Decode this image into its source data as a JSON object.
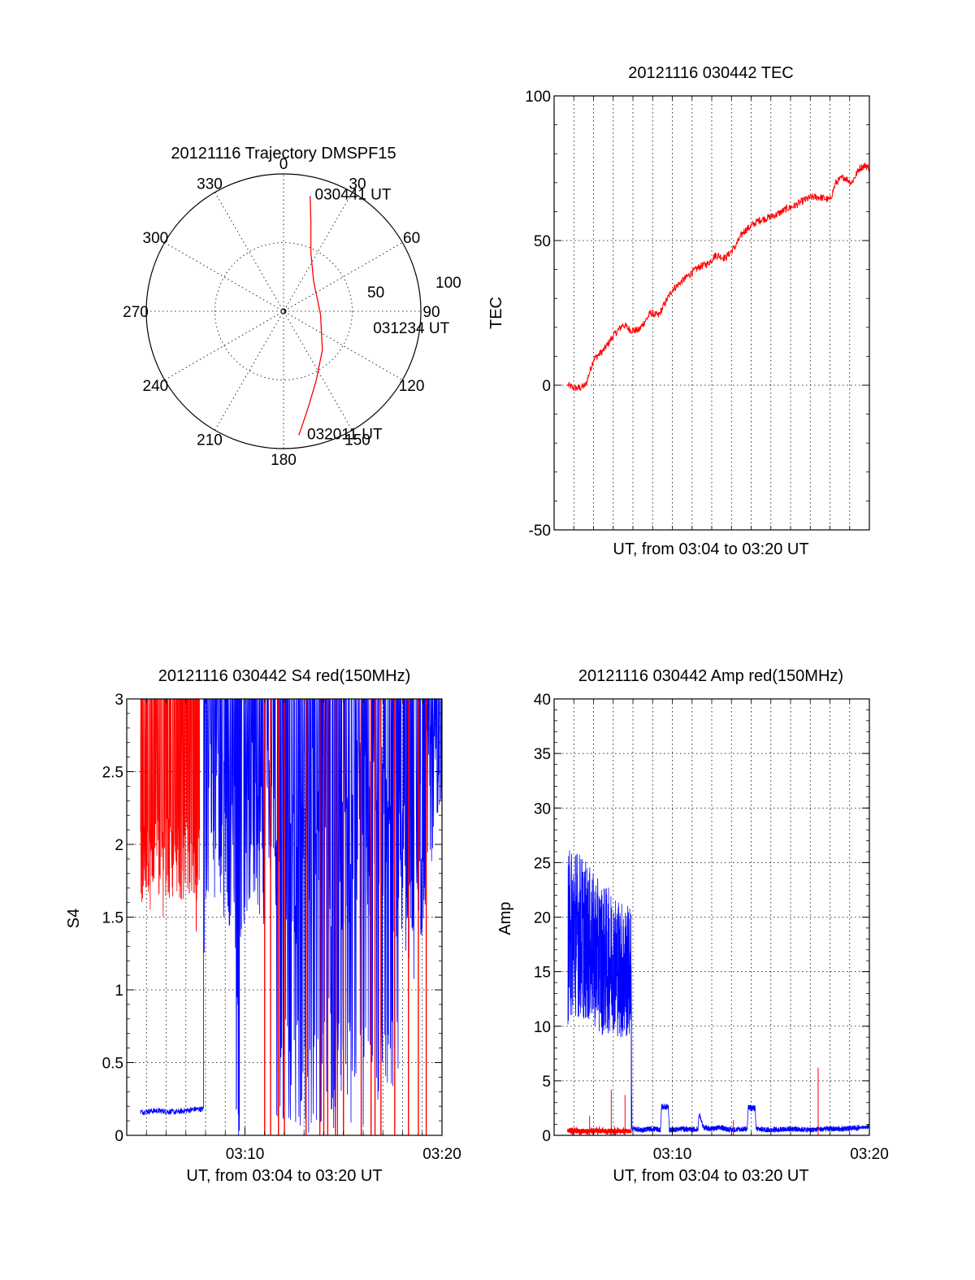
{
  "chart_data": [
    {
      "id": "trajectory",
      "type": "polar",
      "title": "20121116 Trajectory DMSPF15",
      "angle_labels": [
        "0",
        "30",
        "60",
        "90",
        "120",
        "150",
        "180",
        "210",
        "240",
        "270",
        "300",
        "330"
      ],
      "radius_labels": [
        "50",
        "100"
      ],
      "r_max": 100,
      "series": [
        {
          "color": "#ff0000",
          "points": [
            {
              "az": 13,
              "el_offset": 86
            },
            {
              "az": 17,
              "el_offset": 68
            },
            {
              "az": 25,
              "el_offset": 47
            },
            {
              "az": 45,
              "el_offset": 31
            },
            {
              "az": 95,
              "el_offset": 27
            },
            {
              "az": 135,
              "el_offset": 40
            },
            {
              "az": 155,
              "el_offset": 56
            },
            {
              "az": 165,
              "el_offset": 71
            },
            {
              "az": 171,
              "el_offset": 85
            },
            {
              "az": 173,
              "el_offset": 91
            }
          ]
        }
      ],
      "annotations": [
        {
          "text": "030441 UT",
          "az": 16,
          "el_offset": 89
        },
        {
          "text": "031234 UT",
          "az": 100,
          "el_offset": 68
        },
        {
          "text": "032011 UT",
          "az": 168,
          "el_offset": 91
        }
      ]
    },
    {
      "id": "tec",
      "type": "line",
      "title": "20121116 030442 TEC",
      "xlabel": "UT, from 03:04 to 03:20 UT",
      "ylabel": "TEC",
      "xlim": [
        0,
        16
      ],
      "ylim": [
        -50,
        100
      ],
      "yticks": [
        -50,
        0,
        50,
        100
      ],
      "xticks": [],
      "grid": true,
      "series": [
        {
          "color": "#ff0000",
          "noise": 1.3,
          "x": [
            0.7,
            1.0,
            1.3,
            1.6,
            2.0,
            2.5,
            3.0,
            3.5,
            3.9,
            4.3,
            4.9,
            5.3,
            5.6,
            6.0,
            6.5,
            7.0,
            7.4,
            7.8,
            8.2,
            8.7,
            9.2,
            9.6,
            10.0,
            10.4,
            10.9,
            11.3,
            11.8,
            12.2,
            12.7,
            13.1,
            13.5,
            14.0,
            14.3,
            14.7,
            15.1,
            15.5,
            15.8,
            16.0
          ],
          "values": [
            0,
            -1,
            -1,
            0,
            9,
            12,
            17,
            21,
            19,
            19,
            25,
            24,
            28,
            33,
            36,
            39,
            41,
            42,
            45,
            44,
            48,
            53,
            55,
            57,
            58,
            59,
            61,
            62,
            64,
            65,
            65,
            64,
            70,
            72,
            70,
            75,
            76,
            75
          ]
        }
      ]
    },
    {
      "id": "s4",
      "type": "line",
      "title": "20121116 030442 S4 red(150MHz)",
      "xlabel": "UT, from 03:04 to 03:20 UT",
      "ylabel": "S4",
      "xlim": [
        0,
        16
      ],
      "ylim": [
        0,
        3
      ],
      "yticks": [
        0,
        0.5,
        1,
        1.5,
        2,
        2.5,
        3
      ],
      "ytick_labels": [
        "0",
        "0.5",
        "1",
        "1.5",
        "2",
        "2.5",
        "3"
      ],
      "xticks": [
        6,
        16
      ],
      "xtick_labels": [
        "03:10",
        "03:20"
      ],
      "grid": true,
      "series": [
        {
          "name": "red",
          "color": "#ff0000",
          "segments": [
            {
              "x_from": 0.7,
              "x_to": 3.7,
              "low": [
                1.6,
                2.2
              ],
              "high": 3.0,
              "min_dip": 1.35
            }
          ],
          "spikes_x": [
            7.0,
            7.3,
            7.7,
            8.0,
            9.1,
            9.8,
            10.0,
            10.2,
            10.6,
            11.0,
            11.9,
            12.4,
            12.6,
            12.9,
            13.6,
            14.3,
            14.8,
            15.2
          ]
        },
        {
          "name": "blue",
          "color": "#0000ff",
          "x": [
            0.7,
            1.5,
            2.5,
            3.5,
            3.9,
            3.95,
            5.5,
            5.55,
            5.6,
            5.75,
            5.8,
            6.0,
            6.5,
            7.0,
            7.5,
            8.0,
            8.5,
            9.0,
            10.0,
            10.6,
            10.7,
            10.8,
            11.0,
            12.0,
            12.5,
            13.0,
            13.5,
            14.0,
            14.5,
            15.0,
            15.5,
            16.0
          ],
          "values": [
            0.16,
            0.17,
            0.16,
            0.18,
            0.18,
            2.2,
            2.0,
            0.6,
            0.55,
            0.6,
            2.0,
            2.0,
            2.2,
            2.0,
            2.2,
            2.0,
            1.8,
            2.2,
            2.2,
            0.45,
            0.4,
            1.8,
            2.0,
            2.2,
            2.0,
            2.2,
            2.0,
            1.9,
            1.6,
            2.0,
            2.4,
            2.8
          ]
        }
      ]
    },
    {
      "id": "amp",
      "type": "line",
      "title": "20121116 030442 Amp red(150MHz)",
      "xlabel": "UT, from 03:04 to 03:20 UT",
      "ylabel": "Amp",
      "xlim": [
        0,
        16
      ],
      "ylim": [
        0,
        40
      ],
      "yticks": [
        0,
        5,
        10,
        15,
        20,
        25,
        30,
        35,
        40
      ],
      "xticks": [
        6,
        16
      ],
      "xtick_labels": [
        "03:10",
        "03:20"
      ],
      "grid": true,
      "series": [
        {
          "name": "blue",
          "color": "#0000ff",
          "x": [
            0.7,
            1.0,
            1.5,
            2.0,
            2.5,
            3.0,
            3.5,
            3.9,
            3.95,
            4.5,
            5.0,
            5.4,
            5.45,
            5.8,
            5.85,
            6.5,
            7.0,
            7.3,
            7.35,
            7.6,
            8.0,
            8.5,
            9.0,
            9.8,
            9.85,
            10.2,
            10.25,
            11.0,
            12.0,
            13.0,
            14.0,
            15.0,
            16.0
          ],
          "values": [
            18,
            19,
            18,
            17,
            16,
            16,
            15,
            15,
            0.6,
            0.5,
            0.6,
            0.5,
            2.6,
            2.6,
            0.5,
            0.6,
            0.5,
            0.6,
            2.0,
            0.7,
            0.6,
            0.7,
            0.5,
            0.6,
            2.5,
            2.5,
            0.6,
            0.5,
            0.6,
            0.5,
            0.6,
            0.6,
            0.8
          ],
          "spread": [
            8,
            8,
            7.5,
            7,
            7,
            6.5,
            6.5,
            6,
            0,
            0,
            0,
            0,
            0.3,
            0.3,
            0,
            0,
            0,
            0,
            0.3,
            0,
            0,
            0,
            0,
            0,
            0.3,
            0.3,
            0,
            0,
            0,
            0,
            0,
            0,
            0.2
          ]
        },
        {
          "name": "red",
          "color": "#ff0000",
          "x": [
            0.7,
            3.9
          ],
          "values": [
            0.4,
            0.4
          ],
          "spikes": [
            [
              1.8,
              1.8
            ],
            [
              2.9,
              4.2
            ],
            [
              3.6,
              3.7
            ],
            [
              13.4,
              6.2
            ],
            [
              9.1,
              1.4
            ]
          ]
        }
      ]
    }
  ]
}
